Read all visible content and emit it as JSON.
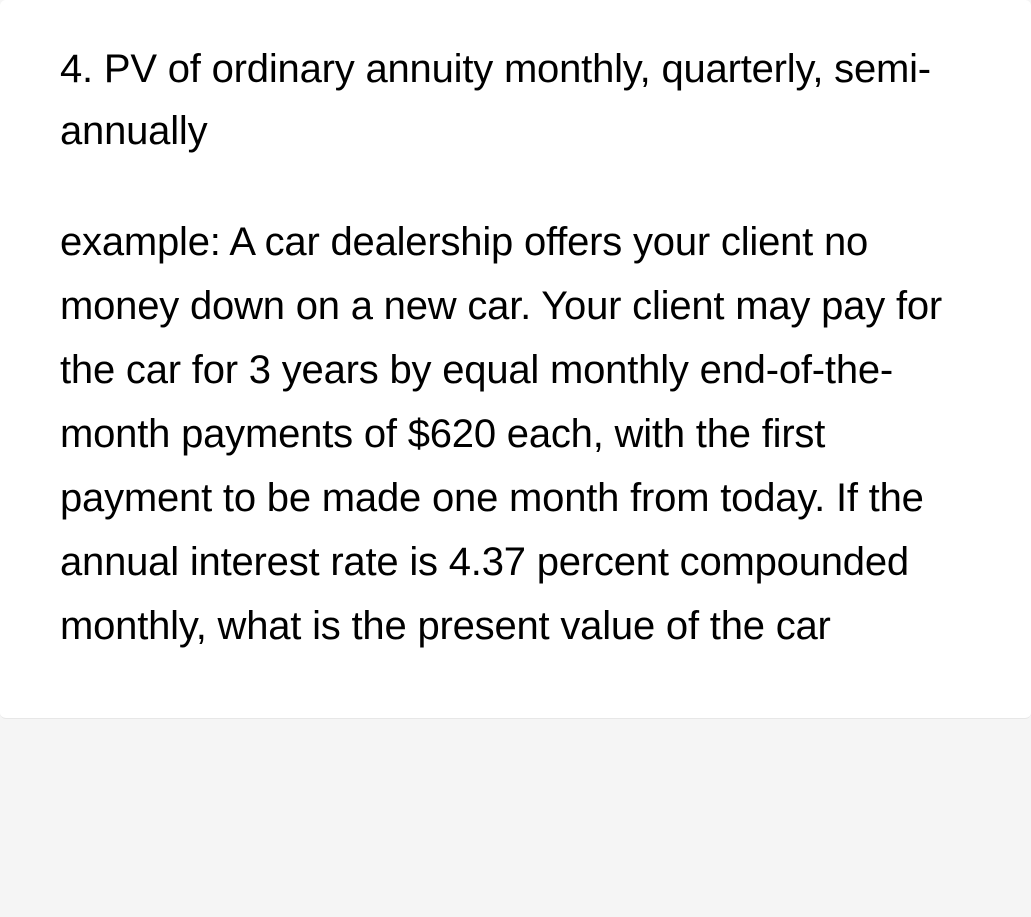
{
  "document": {
    "heading": "4. PV of ordinary annuity monthly, quarterly, semi-annually",
    "body": "example: A car dealership offers your client no money down on a new car. Your client may pay for the car for 3 years by equal monthly end-of-the-month payments of $620 each, with the first payment to be made one month from today. If the annual interest rate is 4.37 percent compounded monthly, what is the present value of the car",
    "text_color": "#000000",
    "background_color": "#ffffff",
    "page_background": "#f5f5f5",
    "font_size_pt": 30,
    "line_height": 1.6
  }
}
